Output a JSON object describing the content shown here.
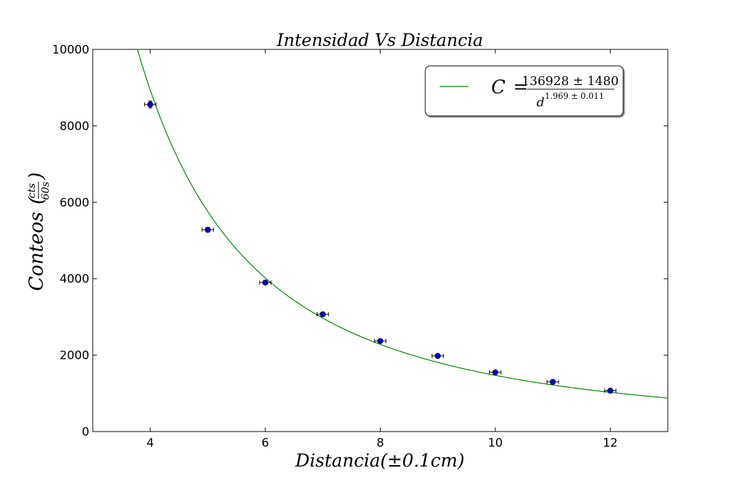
{
  "chart_data": {
    "type": "scatter",
    "title": "Intensidad Vs Distancia",
    "xlabel": "Distancia(±0.1cm)",
    "ylabel": {
      "main": "Conteos",
      "numerator": "cts",
      "denominator": "60s"
    },
    "xlim": [
      3,
      13
    ],
    "ylim": [
      0,
      10000
    ],
    "xticks": [
      "4",
      "6",
      "8",
      "10",
      "12"
    ],
    "yticks": [
      "0",
      "2000",
      "4000",
      "6000",
      "8000",
      "10000"
    ],
    "grid": false,
    "series": [
      {
        "marker": "circle",
        "color": "#0000cc",
        "x": [
          4,
          5,
          6,
          7,
          8,
          9,
          10,
          11,
          12
        ],
        "y": [
          8560,
          5280,
          3900,
          3070,
          2370,
          1980,
          1550,
          1300,
          1070
        ],
        "y_err": [
          90,
          60,
          50,
          40,
          40,
          30,
          30,
          30,
          30
        ],
        "x_err": 0.1
      }
    ],
    "fit": {
      "color": "#008000",
      "formula": "C = A / d^B",
      "A": 136928,
      "A_err": 1480,
      "B": 1.969,
      "B_err": 0.011,
      "legend": {
        "lhs": "C",
        "numerator": "136928 ± 1480",
        "denominator_base": "d",
        "denominator_exp": "1.969 ± 0.011"
      }
    },
    "legend_position": "top-right"
  }
}
